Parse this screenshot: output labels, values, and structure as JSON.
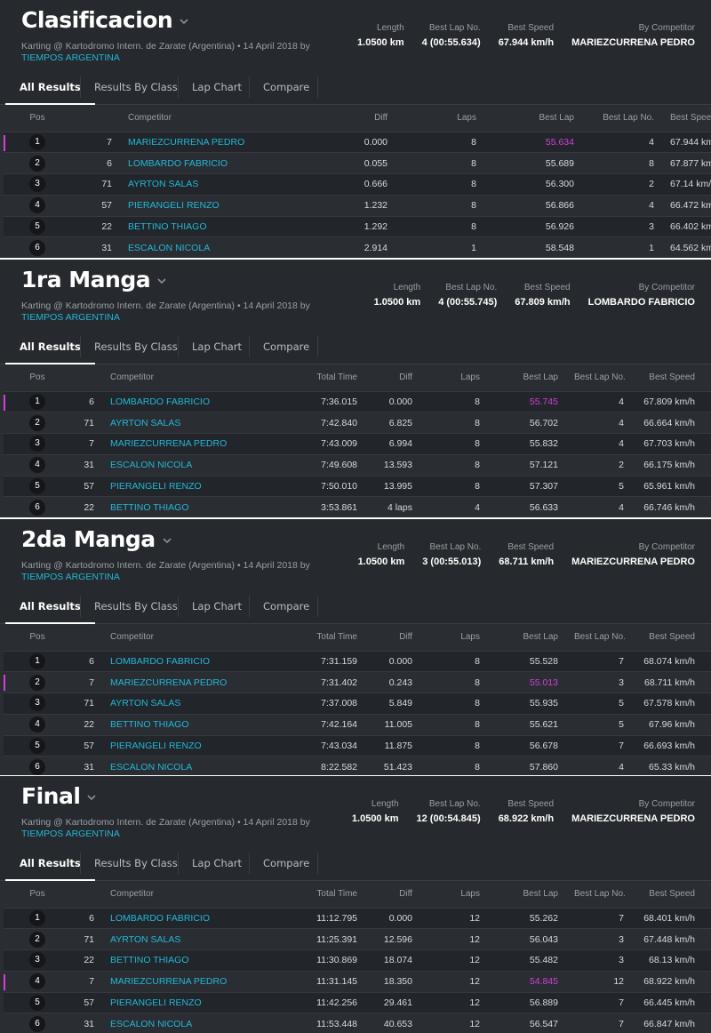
{
  "common": {
    "location": "Karting @ Kartodromo Intern. de Zarate (Argentina) • 14 April 2018 by",
    "org": "TIEMPOS ARGENTINA",
    "stat_labels": {
      "length": "Length",
      "best_lap_no": "Best Lap No.",
      "best_speed": "Best Speed",
      "by_competitor": "By Competitor"
    },
    "tabs": [
      "All Results",
      "Results By Class",
      "Lap Chart",
      "Compare"
    ]
  },
  "sessions": [
    {
      "title": "Clasificacion",
      "length": "1.0500 km",
      "best_lap_no": "4 (00:55.634)",
      "best_speed": "67.944 km/h",
      "by_competitor": "MARIEZCURRENA PEDRO",
      "headers": [
        "Pos",
        "",
        "Competitor",
        "Diff",
        "Laps",
        "Best Lap",
        "Best Lap No.",
        "Best Speed"
      ],
      "rows": [
        [
          "1",
          "7",
          "MARIEZCURRENA PEDRO",
          "0.000",
          "8",
          "55.634",
          "4",
          "67.944 km/h"
        ],
        [
          "2",
          "6",
          "LOMBARDO FABRICIO",
          "0.055",
          "8",
          "55.689",
          "8",
          "67.877 km/h"
        ],
        [
          "3",
          "71",
          "AYRTON SALAS",
          "0.666",
          "8",
          "56.300",
          "2",
          "67.14 km/h"
        ],
        [
          "4",
          "57",
          "PIERANGELI RENZO",
          "1.232",
          "8",
          "56.866",
          "4",
          "66.472 km/h"
        ],
        [
          "5",
          "22",
          "BETTINO THIAGO",
          "1.292",
          "8",
          "56.926",
          "3",
          "66.402 km/h"
        ],
        [
          "6",
          "31",
          "ESCALON NICOLA",
          "2.914",
          "1",
          "58.548",
          "1",
          "64.562 km/h"
        ]
      ],
      "best_row": 0
    },
    {
      "title": "1ra Manga",
      "length": "1.0500 km",
      "best_lap_no": "4 (00:55.745)",
      "best_speed": "67.809 km/h",
      "by_competitor": "LOMBARDO FABRICIO",
      "headers": [
        "Pos",
        "",
        "Competitor",
        "Total Time",
        "Diff",
        "Laps",
        "Best Lap",
        "Best Lap No.",
        "Best Speed"
      ],
      "rows": [
        [
          "1",
          "6",
          "LOMBARDO FABRICIO",
          "7:36.015",
          "0.000",
          "8",
          "55.745",
          "4",
          "67.809 km/h"
        ],
        [
          "2",
          "71",
          "AYRTON SALAS",
          "7:42.840",
          "6.825",
          "8",
          "56.702",
          "4",
          "66.664 km/h"
        ],
        [
          "3",
          "7",
          "MARIEZCURRENA PEDRO",
          "7:43.009",
          "6.994",
          "8",
          "55.832",
          "4",
          "67.703 km/h"
        ],
        [
          "4",
          "31",
          "ESCALON NICOLA",
          "7:49.608",
          "13.593",
          "8",
          "57.121",
          "2",
          "66.175 km/h"
        ],
        [
          "5",
          "57",
          "PIERANGELI RENZO",
          "7:50.010",
          "13.995",
          "8",
          "57.307",
          "5",
          "65.961 km/h"
        ],
        [
          "6",
          "22",
          "BETTINO THIAGO",
          "3:53.861",
          "4 laps",
          "4",
          "56.633",
          "4",
          "66.746 km/h"
        ]
      ],
      "best_row": 0
    },
    {
      "title": "2da Manga",
      "length": "1.0500 km",
      "best_lap_no": "3 (00:55.013)",
      "best_speed": "68.711 km/h",
      "by_competitor": "MARIEZCURRENA PEDRO",
      "headers": [
        "Pos",
        "",
        "Competitor",
        "Total Time",
        "Diff",
        "Laps",
        "Best Lap",
        "Best Lap No.",
        "Best Speed"
      ],
      "rows": [
        [
          "1",
          "6",
          "LOMBARDO FABRICIO",
          "7:31.159",
          "0.000",
          "8",
          "55.528",
          "7",
          "68.074 km/h"
        ],
        [
          "2",
          "7",
          "MARIEZCURRENA PEDRO",
          "7:31.402",
          "0.243",
          "8",
          "55.013",
          "3",
          "68.711 km/h"
        ],
        [
          "3",
          "71",
          "AYRTON SALAS",
          "7:37.008",
          "5.849",
          "8",
          "55.935",
          "5",
          "67.578 km/h"
        ],
        [
          "4",
          "22",
          "BETTINO THIAGO",
          "7:42.164",
          "11.005",
          "8",
          "55.621",
          "5",
          "67.96 km/h"
        ],
        [
          "5",
          "57",
          "PIERANGELI RENZO",
          "7:43.034",
          "11.875",
          "8",
          "56.678",
          "7",
          "66.693 km/h"
        ],
        [
          "6",
          "31",
          "ESCALON NICOLA",
          "8:22.582",
          "51.423",
          "8",
          "57.860",
          "4",
          "65.33 km/h"
        ]
      ],
      "best_row": 1
    },
    {
      "title": "Final",
      "length": "1.0500 km",
      "best_lap_no": "12 (00:54.845)",
      "best_speed": "68.922 km/h",
      "by_competitor": "MARIEZCURRENA PEDRO",
      "headers": [
        "Pos",
        "",
        "Competitor",
        "Total Time",
        "Diff",
        "Laps",
        "Best Lap",
        "Best Lap No.",
        "Best Speed"
      ],
      "rows": [
        [
          "1",
          "6",
          "LOMBARDO FABRICIO",
          "11:12.795",
          "0.000",
          "12",
          "55.262",
          "7",
          "68.401 km/h"
        ],
        [
          "2",
          "71",
          "AYRTON SALAS",
          "11:25.391",
          "12.596",
          "12",
          "56.043",
          "3",
          "67.448 km/h"
        ],
        [
          "3",
          "22",
          "BETTINO THIAGO",
          "11:30.869",
          "18.074",
          "12",
          "55.482",
          "3",
          "68.13 km/h"
        ],
        [
          "4",
          "7",
          "MARIEZCURRENA PEDRO",
          "11:31.145",
          "18.350",
          "12",
          "54.845",
          "12",
          "68.922 km/h"
        ],
        [
          "5",
          "57",
          "PIERANGELI RENZO",
          "11:42.256",
          "29.461",
          "12",
          "56.889",
          "7",
          "66.445 km/h"
        ],
        [
          "6",
          "31",
          "ESCALON NICOLA",
          "11:53.448",
          "40.653",
          "12",
          "56.547",
          "7",
          "66.847 km/h"
        ]
      ],
      "best_row": 3
    }
  ],
  "colors": {
    "link": "#22b8d8",
    "best_lap": "#d63fd6",
    "panel": "#2a2d31"
  }
}
